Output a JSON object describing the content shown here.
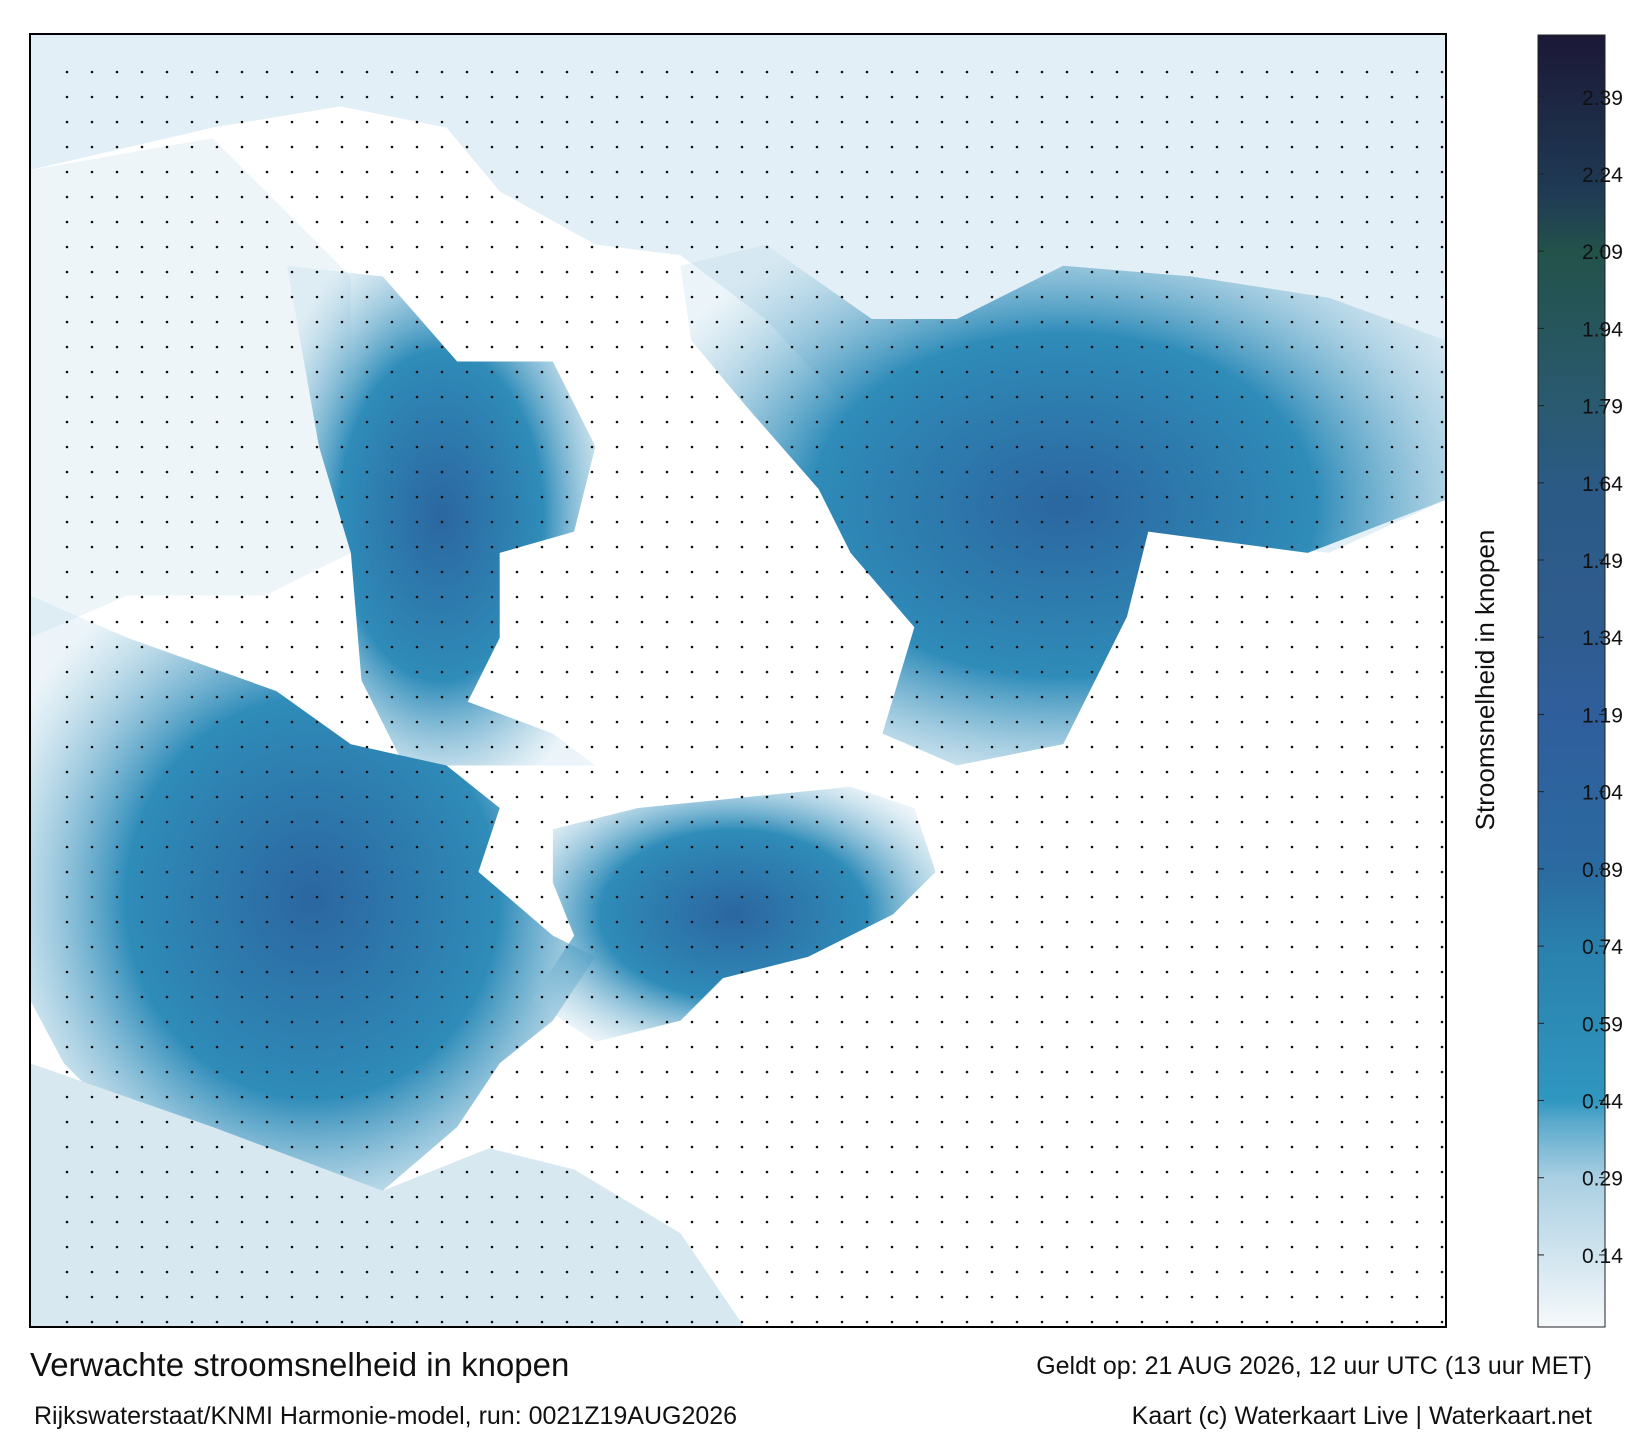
{
  "title": "Verwachte stroomsnelheid in knopen",
  "valid": "Geldt op: 21 AUG 2026, 12 uur UTC (13 uur MET)",
  "source": "Rijkswaterstaat/KNMI Harmonie-model, run: 0021Z19AUG2026",
  "credit": "Kaart (c) Waterkaart Live | Waterkaart.net",
  "colorbar": {
    "label": "Stroomsnelheid in knopen",
    "lim": [
      0,
      2.51
    ],
    "ticks": [
      0.14,
      0.29,
      0.44,
      0.59,
      0.74,
      0.89,
      1.04,
      1.19,
      1.34,
      1.49,
      1.64,
      1.79,
      1.94,
      2.09,
      2.24,
      2.39
    ],
    "stops": [
      {
        "value": 0,
        "color": "#f6f9fb"
      },
      {
        "value": 0.29,
        "color": "#a9cfe2"
      },
      {
        "value": 0.4,
        "color": "#5aa9cc"
      },
      {
        "value": 0.44,
        "color": "#2f97c0"
      },
      {
        "value": 0.74,
        "color": "#2a80ac"
      },
      {
        "value": 0.89,
        "color": "#2b6aa0"
      },
      {
        "value": 1.19,
        "color": "#2f5e9c"
      },
      {
        "value": 1.34,
        "color": "#2f5c8f"
      },
      {
        "value": 1.64,
        "color": "#2b5a85"
      },
      {
        "value": 1.79,
        "color": "#2a5a70"
      },
      {
        "value": 2.09,
        "color": "#23524a"
      },
      {
        "value": 2.2,
        "color": "#1f3b55"
      },
      {
        "value": 2.51,
        "color": "#1b1836"
      }
    ]
  }
}
